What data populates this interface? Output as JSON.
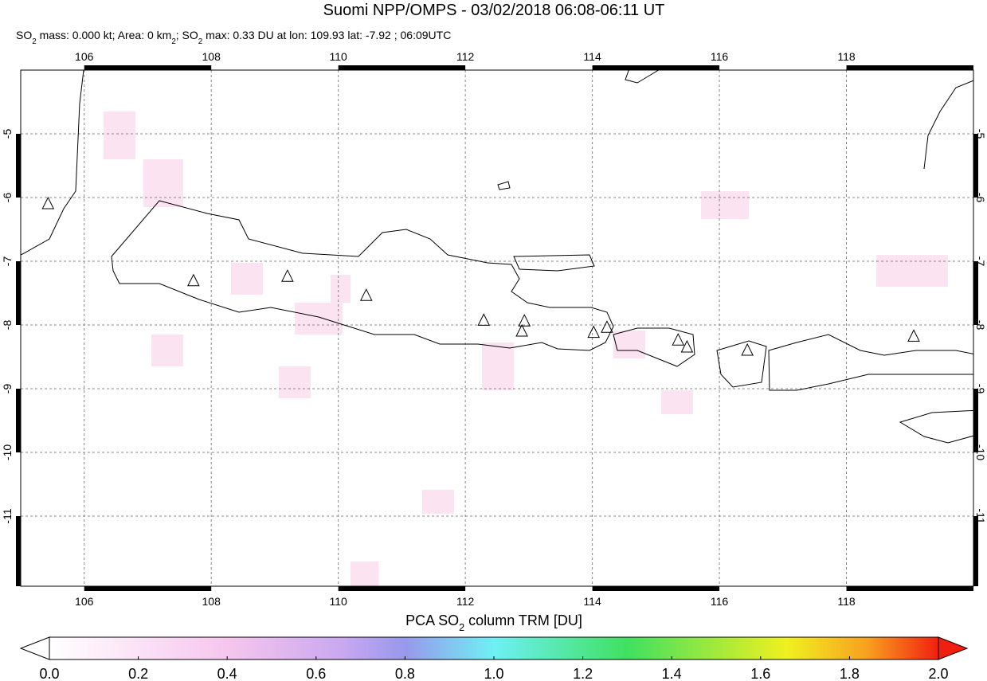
{
  "title": "Suomi NPP/OMPS - 03/02/2018 06:08-06:11 UT",
  "subtitle": [
    "SO",
    "2",
    " mass: 0.000 kt; Area: 0 km",
    "2",
    "; SO",
    "2",
    " max: 0.33 DU at lon: 109.93 lat: -7.92 ; 06:09UTC"
  ],
  "map": {
    "xlim": [
      105,
      120
    ],
    "ylim": [
      -12.1,
      -4
    ],
    "lon_ticks": [
      106,
      108,
      110,
      112,
      114,
      116,
      118
    ],
    "lat_ticks": [
      -5,
      -6,
      -7,
      -8,
      -9,
      -10,
      -11
    ],
    "volcanoes": [
      [
        105.43,
        -6.1
      ],
      [
        107.72,
        -7.31
      ],
      [
        109.2,
        -7.24
      ],
      [
        110.44,
        -7.54
      ],
      [
        112.29,
        -7.93
      ],
      [
        112.93,
        -7.94
      ],
      [
        112.89,
        -8.1
      ],
      [
        114.02,
        -8.12
      ],
      [
        114.23,
        -8.04
      ],
      [
        115.35,
        -8.24
      ],
      [
        115.49,
        -8.35
      ],
      [
        116.44,
        -8.4
      ],
      [
        119.06,
        -8.18
      ]
    ]
  },
  "colorbar": {
    "label": [
      "PCA SO",
      "2",
      " column TRM [DU]"
    ],
    "range": [
      0,
      2
    ],
    "ticks": [
      {
        "value": 0,
        "label": "0.0"
      },
      0.2,
      0.4,
      0.6,
      0.8,
      {
        "value": 1,
        "label": "1.0"
      },
      1.2,
      1.4,
      1.6,
      1.8,
      {
        "value": 2,
        "label": "2.0"
      }
    ]
  }
}
